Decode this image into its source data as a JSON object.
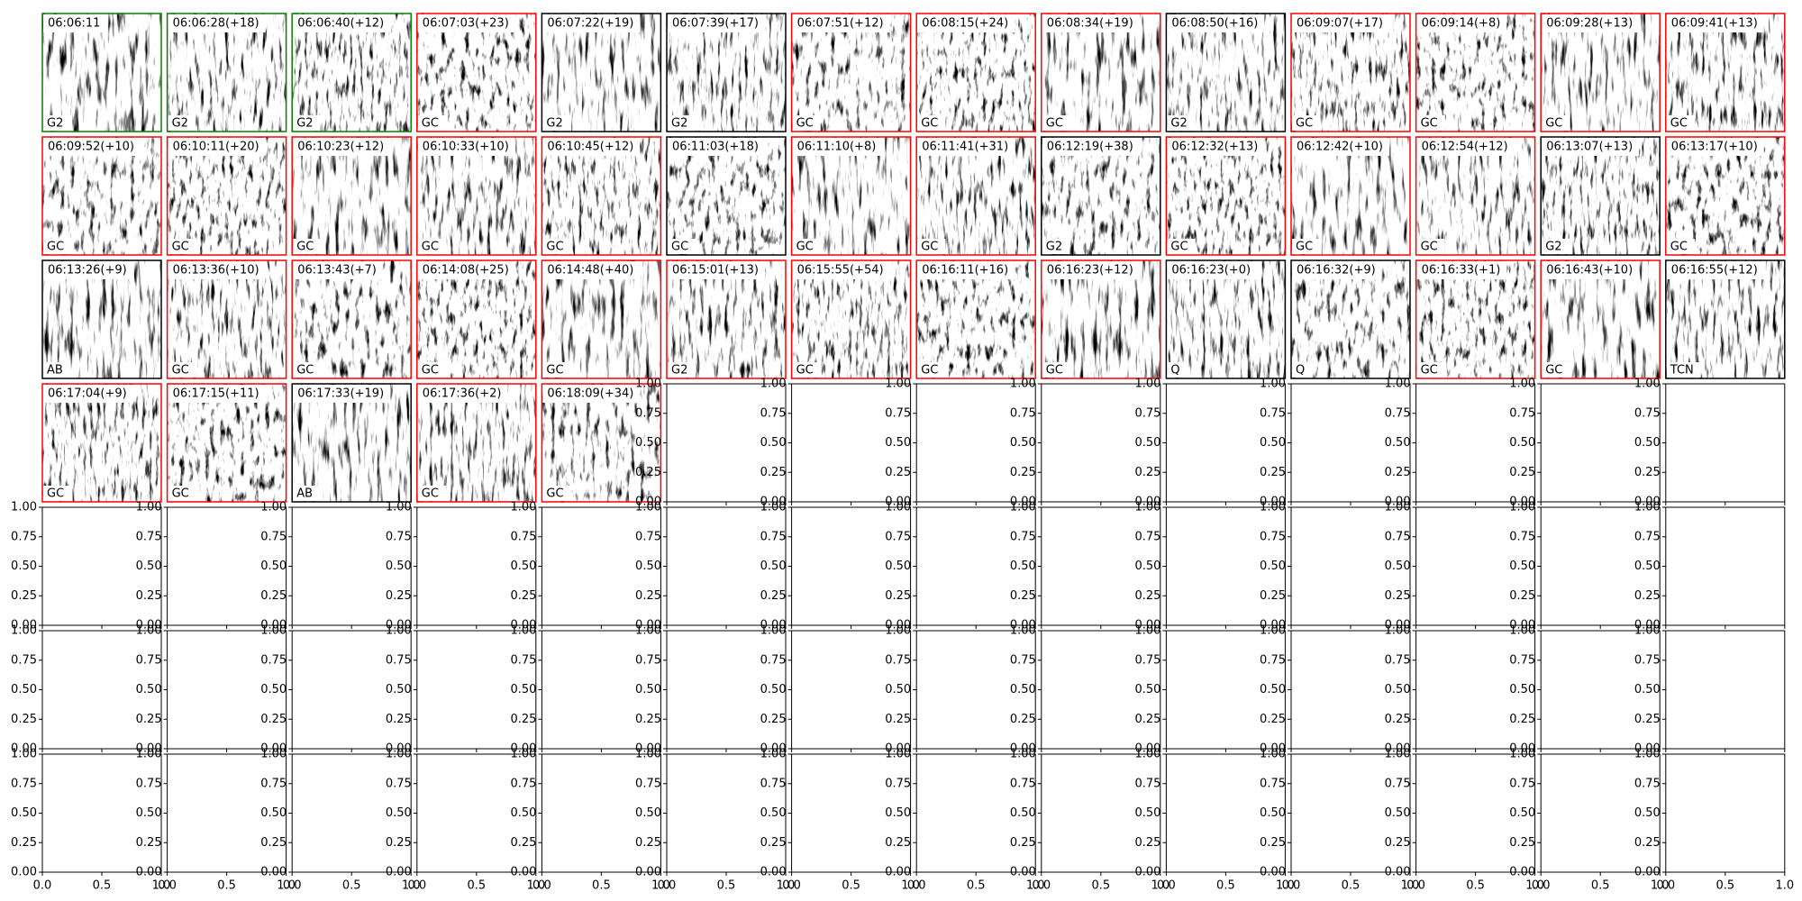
{
  "chart_data": {
    "type": "image-grid",
    "panels": [
      {
        "time": "06:06:11",
        "label": "G2",
        "color": "green"
      },
      {
        "time": "06:06:28(+18)",
        "label": "G2",
        "color": "green"
      },
      {
        "time": "06:06:40(+12)",
        "label": "G2",
        "color": "green"
      },
      {
        "time": "06:07:03(+23)",
        "label": "GC",
        "color": "red"
      },
      {
        "time": "06:07:22(+19)",
        "label": "G2",
        "color": "black"
      },
      {
        "time": "06:07:39(+17)",
        "label": "G2",
        "color": "black"
      },
      {
        "time": "06:07:51(+12)",
        "label": "GC",
        "color": "red"
      },
      {
        "time": "06:08:15(+24)",
        "label": "GC",
        "color": "red"
      },
      {
        "time": "06:08:34(+19)",
        "label": "GC",
        "color": "red"
      },
      {
        "time": "06:08:50(+16)",
        "label": "G2",
        "color": "black"
      },
      {
        "time": "06:09:07(+17)",
        "label": "GC",
        "color": "red"
      },
      {
        "time": "06:09:14(+8)",
        "label": "GC",
        "color": "red"
      },
      {
        "time": "06:09:28(+13)",
        "label": "GC",
        "color": "red"
      },
      {
        "time": "06:09:41(+13)",
        "label": "GC",
        "color": "red"
      },
      {
        "time": "06:09:52(+10)",
        "label": "GC",
        "color": "red"
      },
      {
        "time": "06:10:11(+20)",
        "label": "GC",
        "color": "red"
      },
      {
        "time": "06:10:23(+12)",
        "label": "GC",
        "color": "red"
      },
      {
        "time": "06:10:33(+10)",
        "label": "GC",
        "color": "red"
      },
      {
        "time": "06:10:45(+12)",
        "label": "GC",
        "color": "red"
      },
      {
        "time": "06:11:03(+18)",
        "label": "GC",
        "color": "black"
      },
      {
        "time": "06:11:10(+8)",
        "label": "GC",
        "color": "red"
      },
      {
        "time": "06:11:41(+31)",
        "label": "GC",
        "color": "red"
      },
      {
        "time": "06:12:19(+38)",
        "label": "G2",
        "color": "black"
      },
      {
        "time": "06:12:32(+13)",
        "label": "GC",
        "color": "red"
      },
      {
        "time": "06:12:42(+10)",
        "label": "GC",
        "color": "red"
      },
      {
        "time": "06:12:54(+12)",
        "label": "GC",
        "color": "red"
      },
      {
        "time": "06:13:07(+13)",
        "label": "G2",
        "color": "black"
      },
      {
        "time": "06:13:17(+10)",
        "label": "GC",
        "color": "red"
      },
      {
        "time": "06:13:26(+9)",
        "label": "AB",
        "color": "black"
      },
      {
        "time": "06:13:36(+10)",
        "label": "GC",
        "color": "red"
      },
      {
        "time": "06:13:43(+7)",
        "label": "GC",
        "color": "red"
      },
      {
        "time": "06:14:08(+25)",
        "label": "GC",
        "color": "red"
      },
      {
        "time": "06:14:48(+40)",
        "label": "GC",
        "color": "red"
      },
      {
        "time": "06:15:01(+13)",
        "label": "G2",
        "color": "red"
      },
      {
        "time": "06:15:55(+54)",
        "label": "GC",
        "color": "red"
      },
      {
        "time": "06:16:11(+16)",
        "label": "GC",
        "color": "red"
      },
      {
        "time": "06:16:23(+12)",
        "label": "GC",
        "color": "red"
      },
      {
        "time": "06:16:23(+0)",
        "label": "Q",
        "color": "black"
      },
      {
        "time": "06:16:32(+9)",
        "label": "Q",
        "color": "black"
      },
      {
        "time": "06:16:33(+1)",
        "label": "GC",
        "color": "red"
      },
      {
        "time": "06:16:43(+10)",
        "label": "GC",
        "color": "red"
      },
      {
        "time": "06:16:55(+12)",
        "label": "TCN",
        "color": "black"
      },
      {
        "time": "06:17:04(+9)",
        "label": "GC",
        "color": "red"
      },
      {
        "time": "06:17:15(+11)",
        "label": "GC",
        "color": "red"
      },
      {
        "time": "06:17:33(+19)",
        "label": "AB",
        "color": "black"
      },
      {
        "time": "06:17:36(+2)",
        "label": "GC",
        "color": "red"
      },
      {
        "time": "06:18:09(+34)",
        "label": "GC",
        "color": "red"
      }
    ],
    "empty_axes": {
      "xlim": [
        0,
        1
      ],
      "ylim": [
        0,
        1
      ],
      "xticks": [
        {
          "value": 0,
          "label": "0.0"
        },
        {
          "value": 0.5,
          "label": "0.5"
        },
        {
          "value": 1,
          "label": "1.0"
        }
      ],
      "yticks": [
        {
          "value": 0,
          "label": "0.00"
        },
        {
          "value": 0.25,
          "label": "0.25"
        },
        {
          "value": 0.5,
          "label": "0.50"
        },
        {
          "value": 0.75,
          "label": "0.75"
        },
        {
          "value": 1,
          "label": "1.00"
        }
      ]
    }
  }
}
